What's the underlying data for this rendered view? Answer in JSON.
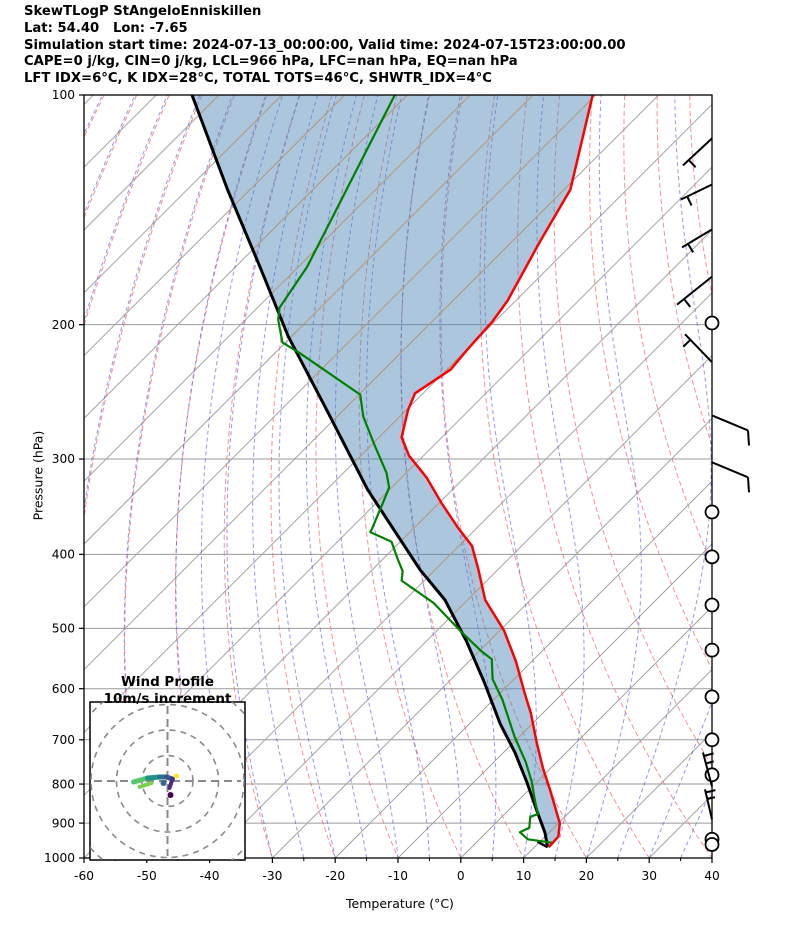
{
  "header": {
    "line1": "SkewTLogP StAngeloEnniskillen",
    "line2": "Lat: 54.40   Lon: -7.65",
    "line3": "Simulation start time: 2024-07-13_00:00:00, Valid time: 2024-07-15T23:00:00.00",
    "line4": "CAPE=0 j/kg, CIN=0 j/kg, LCL=966 hPa, LFC=nan hPa, EQ=nan hPa",
    "line5": "LFT IDX=6°C, K IDX=28°C, TOTAL TOTS=46°C, SHWTR_IDX=4°C"
  },
  "axes": {
    "ylabel": "Pressure (hPa)",
    "xlabel": "Temperature (°C)",
    "yticks": [
      100,
      200,
      300,
      400,
      500,
      600,
      700,
      800,
      900,
      1000
    ],
    "xticks": [
      -60,
      -50,
      -40,
      -30,
      -20,
      -10,
      0,
      10,
      20,
      30,
      40
    ]
  },
  "inset": {
    "title_line1": "Wind Profile",
    "title_line2": "10m/s increment",
    "ring_interval_ms": 10
  },
  "colors": {
    "temperature": "#ff0000",
    "dewpoint": "#008000",
    "parcel": "#000000",
    "shading": "rgba(70,130,180,0.45)",
    "isotherm": "#a3a3a3",
    "isotherm_over_fill": "#c39b77",
    "isobar": "#9a9a9a",
    "dry_adiabat": "rgba(235,110,110,0.75)",
    "moist_adiabat": "rgba(80,80,225,0.6)",
    "barb": "#000000",
    "hodo_ring": "#8a8a8a"
  },
  "chart_data": {
    "type": "skewt",
    "skew_deg": 45,
    "pressure_range_hPa": [
      100,
      1000
    ],
    "temperature_range_C": [
      -60,
      40
    ],
    "isotherm_step_C": 10,
    "dry_adiabat_step_C": 10,
    "temperature_profile": [
      [
        100,
        -100.5
      ],
      [
        133,
        -89
      ],
      [
        156,
        -85.5
      ],
      [
        186,
        -81.3
      ],
      [
        198,
        -80.4
      ],
      [
        216,
        -79.9
      ],
      [
        229,
        -79.4
      ],
      [
        246,
        -81.3
      ],
      [
        259,
        -79.7
      ],
      [
        281,
        -76.4
      ],
      [
        297,
        -72.3
      ],
      [
        317,
        -66.1
      ],
      [
        343,
        -59.5
      ],
      [
        368,
        -53.3
      ],
      [
        390,
        -47.9
      ],
      [
        419,
        -43.1
      ],
      [
        459,
        -37.2
      ],
      [
        503,
        -29.4
      ],
      [
        552,
        -22.6
      ],
      [
        607,
        -16.2
      ],
      [
        647,
        -11.8
      ],
      [
        707,
        -6.2
      ],
      [
        764,
        -1.1
      ],
      [
        811,
        3.1
      ],
      [
        883,
        8.9
      ],
      [
        900,
        10.2
      ],
      [
        937,
        12.1
      ],
      [
        968,
        12.3
      ]
    ],
    "dewpoint_profile": [
      [
        100,
        -132
      ],
      [
        145,
        -122.4
      ],
      [
        168,
        -118.6
      ],
      [
        190,
        -116.5
      ],
      [
        197,
        -114.8
      ],
      [
        211,
        -110.5
      ],
      [
        218,
        -106
      ],
      [
        247,
        -89.8
      ],
      [
        264,
        -85.8
      ],
      [
        288,
        -79.4
      ],
      [
        313,
        -73.1
      ],
      [
        327,
        -70.4
      ],
      [
        343,
        -68.9
      ],
      [
        371,
        -66.5
      ],
      [
        374,
        -66.3
      ],
      [
        385,
        -61.4
      ],
      [
        406,
        -57.6
      ],
      [
        421,
        -54.9
      ],
      [
        433,
        -53.6
      ],
      [
        463,
        -45
      ],
      [
        506,
        -35.8
      ],
      [
        536,
        -29.6
      ],
      [
        549,
        -26.7
      ],
      [
        583,
        -23.4
      ],
      [
        620,
        -18.6
      ],
      [
        693,
        -10.8
      ],
      [
        749,
        -4.9
      ],
      [
        795,
        -0.8
      ],
      [
        844,
        2.9
      ],
      [
        876,
        5.3
      ],
      [
        883,
        4.5
      ],
      [
        913,
        6.1
      ],
      [
        925,
        5.3
      ],
      [
        945,
        7.7
      ],
      [
        955,
        12.1
      ]
    ],
    "parcel_profile": [
      [
        100,
        -164.3
      ],
      [
        133,
        -143.6
      ],
      [
        168,
        -126.1
      ],
      [
        207,
        -110.6
      ],
      [
        259,
        -92.6
      ],
      [
        329,
        -73.5
      ],
      [
        419,
        -52.4
      ],
      [
        459,
        -43.6
      ],
      [
        520,
        -33.6
      ],
      [
        588,
        -24.3
      ],
      [
        667,
        -15.1
      ],
      [
        728,
        -8.1
      ],
      [
        795,
        -1.6
      ],
      [
        866,
        4.5
      ],
      [
        927,
        9.4
      ],
      [
        968,
        12.1
      ]
    ],
    "parcel_foot": [
      [
        968,
        12.1
      ],
      [
        952,
        9.6
      ]
    ],
    "wind_barbs": [
      {
        "p": 114,
        "type": "staff",
        "dx": -29,
        "dy": 27,
        "barb": "full"
      },
      {
        "p": 131,
        "type": "staff",
        "dx": -31,
        "dy": 15,
        "barb": "full"
      },
      {
        "p": 150,
        "type": "staff",
        "dx": -30,
        "dy": 18,
        "barb": "full"
      },
      {
        "p": 173,
        "type": "staff",
        "dx": -35,
        "dy": 28,
        "barb": "full"
      },
      {
        "p": 199,
        "type": "circle"
      },
      {
        "p": 224,
        "type": "staff",
        "dx": -27,
        "dy": -28,
        "barb": "full"
      },
      {
        "p": 263,
        "type": "staff",
        "dx": 36,
        "dy": 15,
        "barb": "hook"
      },
      {
        "p": 303,
        "type": "staff",
        "dx": 36,
        "dy": 15,
        "barb": "hook"
      },
      {
        "p": 352,
        "type": "circle"
      },
      {
        "p": 403,
        "type": "circle"
      },
      {
        "p": 466,
        "type": "circle"
      },
      {
        "p": 534,
        "type": "circle"
      },
      {
        "p": 615,
        "type": "circle"
      },
      {
        "p": 700,
        "type": "circle"
      },
      {
        "p": 778,
        "type": "circle"
      },
      {
        "p": 806,
        "type": "staff",
        "dx": -9,
        "dy": -34,
        "barb": "ticks"
      },
      {
        "p": 890,
        "type": "staff",
        "dx": -7,
        "dy": -30,
        "barb": "ticks"
      },
      {
        "p": 945,
        "type": "circle"
      },
      {
        "p": 960,
        "type": "circle"
      }
    ],
    "hodograph_trace": [
      {
        "x1": -34,
        "y1": 1,
        "x2": -20,
        "y2": -3,
        "c": "#54c568",
        "w": 5
      },
      {
        "x1": -28,
        "y1": 6,
        "x2": -16,
        "y2": 2,
        "c": "#7ad151",
        "w": 4
      },
      {
        "x1": -20,
        "y1": -3,
        "x2": -8,
        "y2": -4,
        "c": "#21918c",
        "w": 5
      },
      {
        "x1": -8,
        "y1": -4,
        "x2": -1,
        "y2": -4,
        "c": "#2c728e",
        "w": 5
      },
      {
        "x1": -1,
        "y1": -4,
        "x2": 5,
        "y2": -2,
        "c": "#3b528b",
        "w": 5
      },
      {
        "x1": 5,
        "y1": -2,
        "x2": 2,
        "y2": 7,
        "c": "#472d7b",
        "w": 4
      }
    ],
    "hodograph_dots": [
      {
        "x": 3,
        "y": 14,
        "c": "#440154",
        "r": 3
      },
      {
        "x": 9,
        "y": -5,
        "c": "#fde725",
        "r": 2.6
      },
      {
        "x": -4,
        "y": 2,
        "c": "#31688e",
        "r": 3
      }
    ]
  }
}
